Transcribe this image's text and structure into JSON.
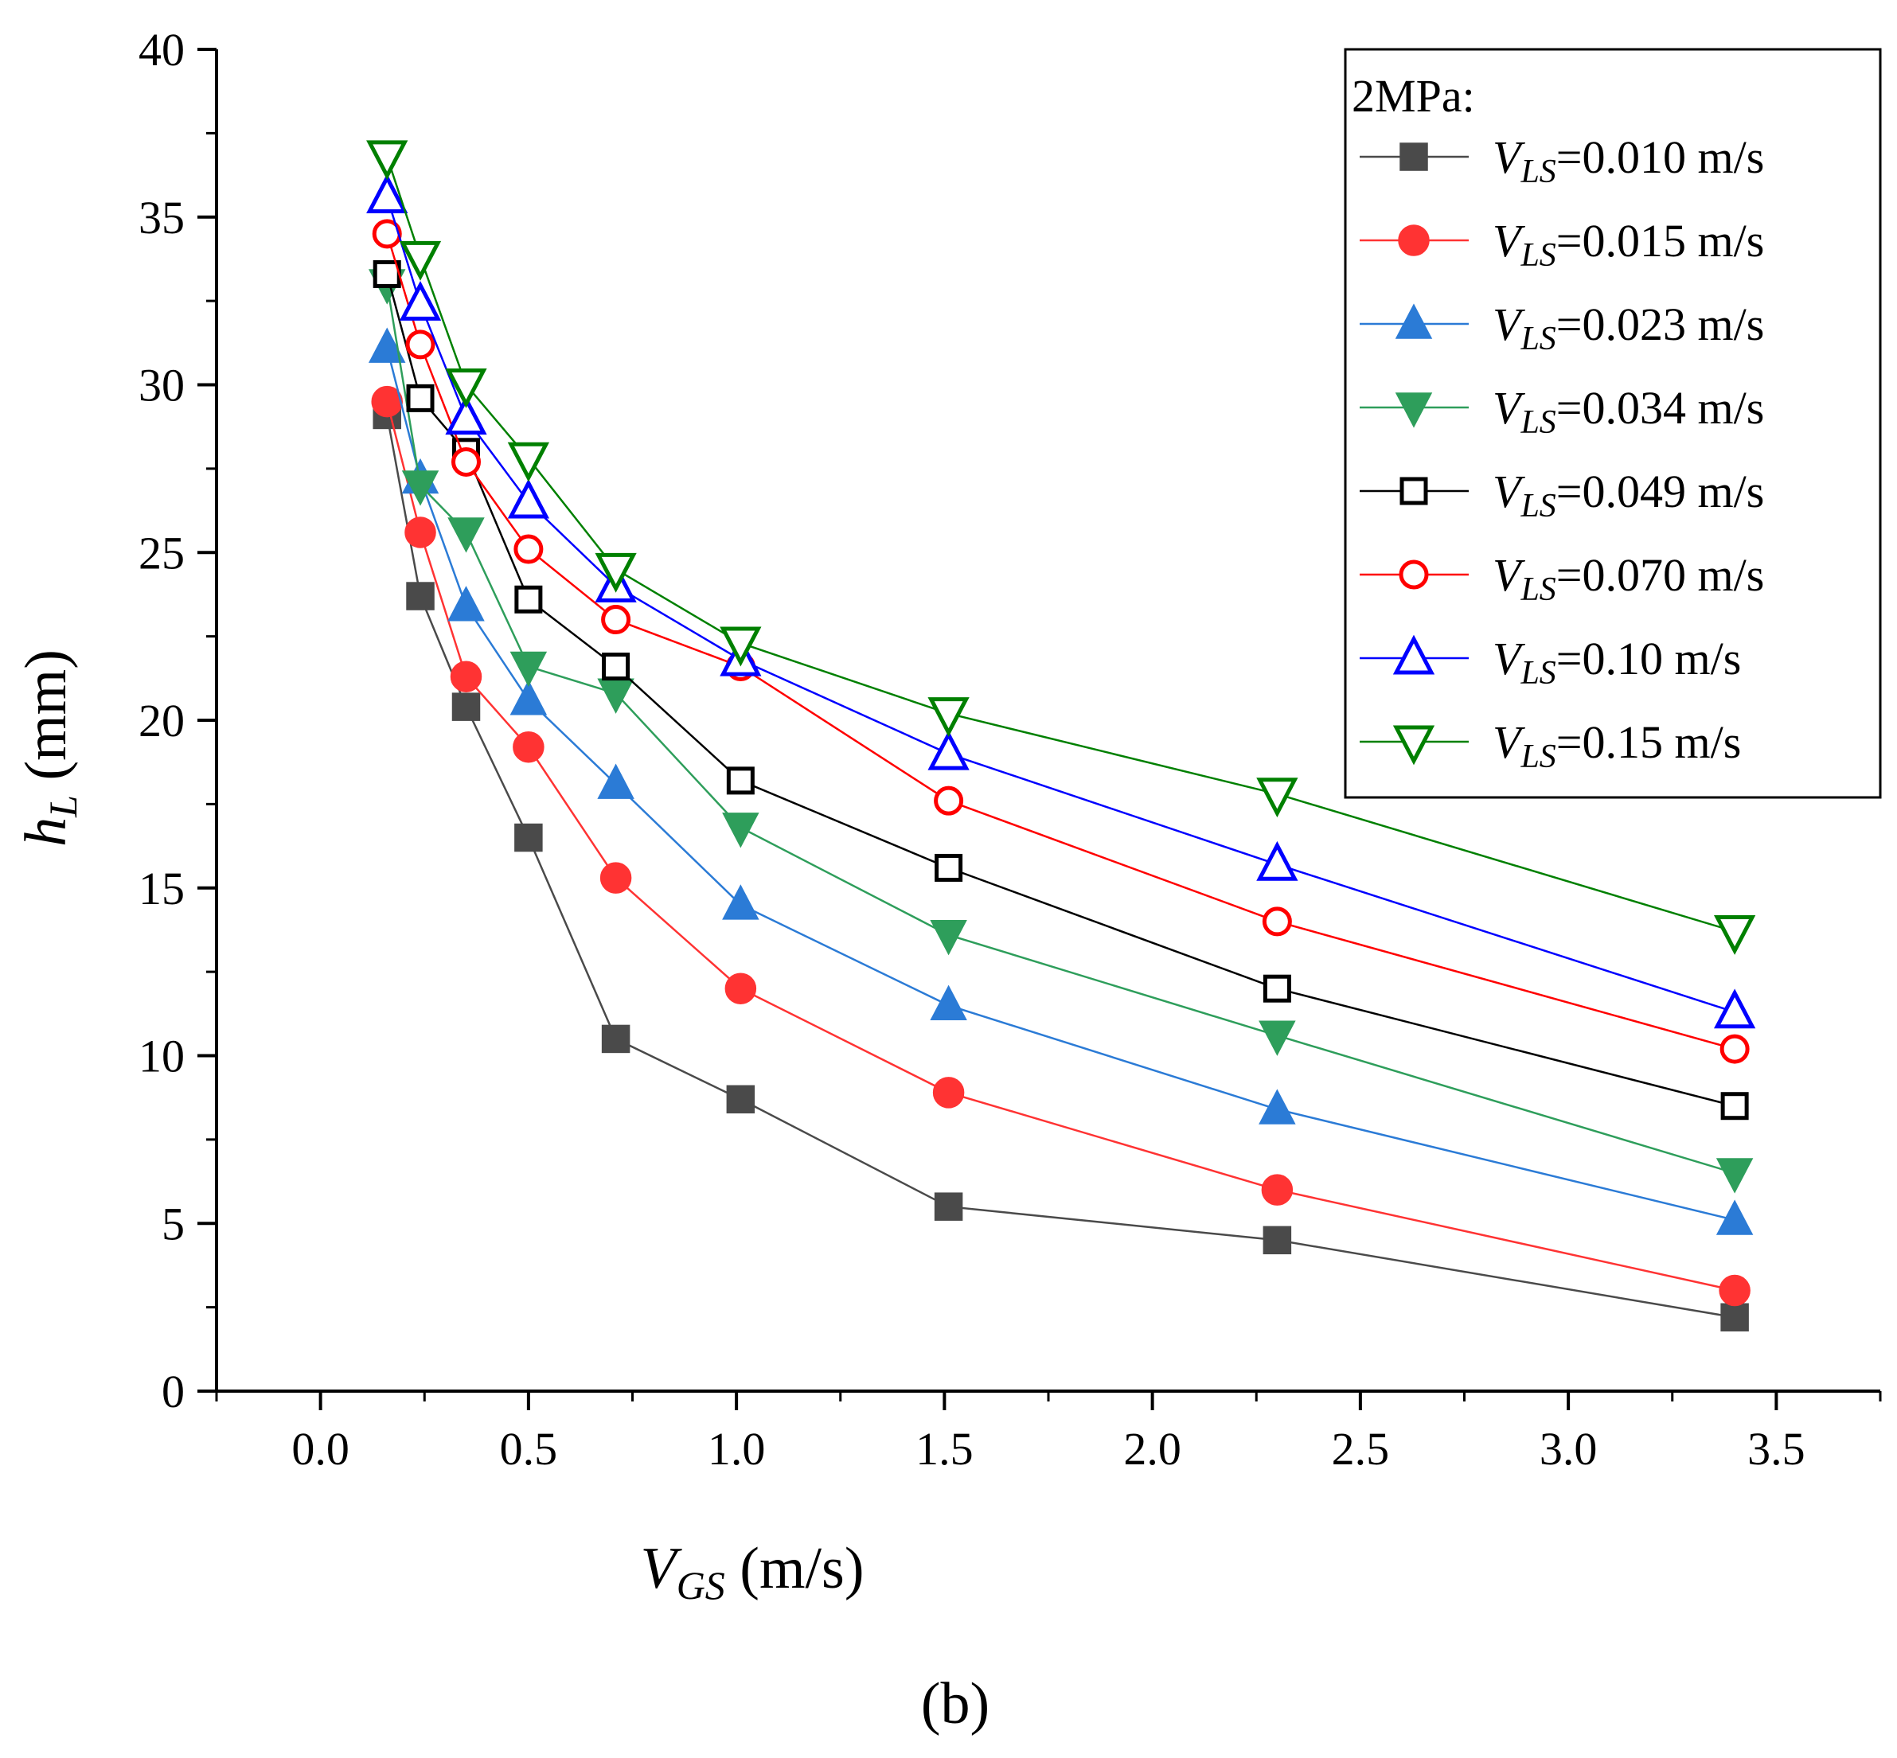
{
  "chart_data": {
    "type": "line",
    "panel_label": "(b)",
    "xlabel": {
      "main": "V",
      "sub": "GS",
      "unit": " (m/s)"
    },
    "ylabel": {
      "main": "h",
      "sub": "L",
      "unit": " (mm)"
    },
    "xlim": [
      -0.25,
      3.75
    ],
    "ylim": [
      0,
      40
    ],
    "xticks": [
      0.0,
      0.5,
      1.0,
      1.5,
      2.0,
      2.5,
      3.0,
      3.5
    ],
    "xtick_labels": [
      "0.0",
      "0.5",
      "1.0",
      "1.5",
      "2.0",
      "2.5",
      "3.0",
      "3.5"
    ],
    "yticks": [
      0,
      5,
      10,
      15,
      20,
      25,
      30,
      35,
      40
    ],
    "ytick_labels": [
      "0",
      "5",
      "10",
      "15",
      "20",
      "25",
      "30",
      "35",
      "40"
    ],
    "x": [
      0.16,
      0.24,
      0.35,
      0.5,
      0.71,
      1.01,
      1.51,
      2.3,
      3.4
    ],
    "legend": {
      "title": "2MPa:",
      "placement": "top-right",
      "var_main": "V",
      "var_sub": "LS"
    },
    "series": [
      {
        "name": "=0.010 m/s",
        "color": "#4a4a4a",
        "marker": "square",
        "filled": true,
        "values": [
          29.1,
          23.7,
          20.4,
          16.5,
          10.5,
          8.7,
          5.5,
          4.5,
          2.2
        ]
      },
      {
        "name": "=0.015 m/s",
        "color": "#ff3333",
        "marker": "circle",
        "filled": true,
        "values": [
          29.5,
          25.6,
          21.3,
          19.2,
          15.3,
          12.0,
          8.9,
          6.0,
          3.0
        ]
      },
      {
        "name": "=0.023 m/s",
        "color": "#2b7bd6",
        "marker": "triangle-up",
        "filled": true,
        "values": [
          31.1,
          27.2,
          23.4,
          20.6,
          18.1,
          14.5,
          11.5,
          8.4,
          5.1
        ]
      },
      {
        "name": "=0.034 m/s",
        "color": "#2e9e5b",
        "marker": "triangle-down",
        "filled": true,
        "values": [
          33.0,
          27.0,
          25.6,
          21.6,
          20.8,
          16.8,
          13.6,
          10.6,
          6.5
        ]
      },
      {
        "name": "=0.049 m/s",
        "color": "#000000",
        "marker": "square",
        "filled": false,
        "values": [
          33.3,
          29.6,
          28.0,
          23.6,
          21.6,
          18.2,
          15.6,
          12.0,
          8.5
        ]
      },
      {
        "name": "=0.070 m/s",
        "color": "#ff0000",
        "marker": "circle",
        "filled": false,
        "values": [
          34.5,
          31.2,
          27.7,
          25.1,
          23.0,
          21.6,
          17.6,
          14.0,
          10.2
        ]
      },
      {
        "name": "=0.10 m/s",
        "color": "#0000ff",
        "marker": "triangle-up",
        "filled": false,
        "values": [
          35.6,
          32.4,
          29.0,
          26.5,
          24.0,
          21.8,
          19.0,
          15.7,
          11.3
        ]
      },
      {
        "name": "=0.15 m/s",
        "color": "#008000",
        "marker": "triangle-down",
        "filled": false,
        "values": [
          36.8,
          33.8,
          30.0,
          27.8,
          24.5,
          22.3,
          20.2,
          17.8,
          13.7
        ]
      }
    ]
  }
}
